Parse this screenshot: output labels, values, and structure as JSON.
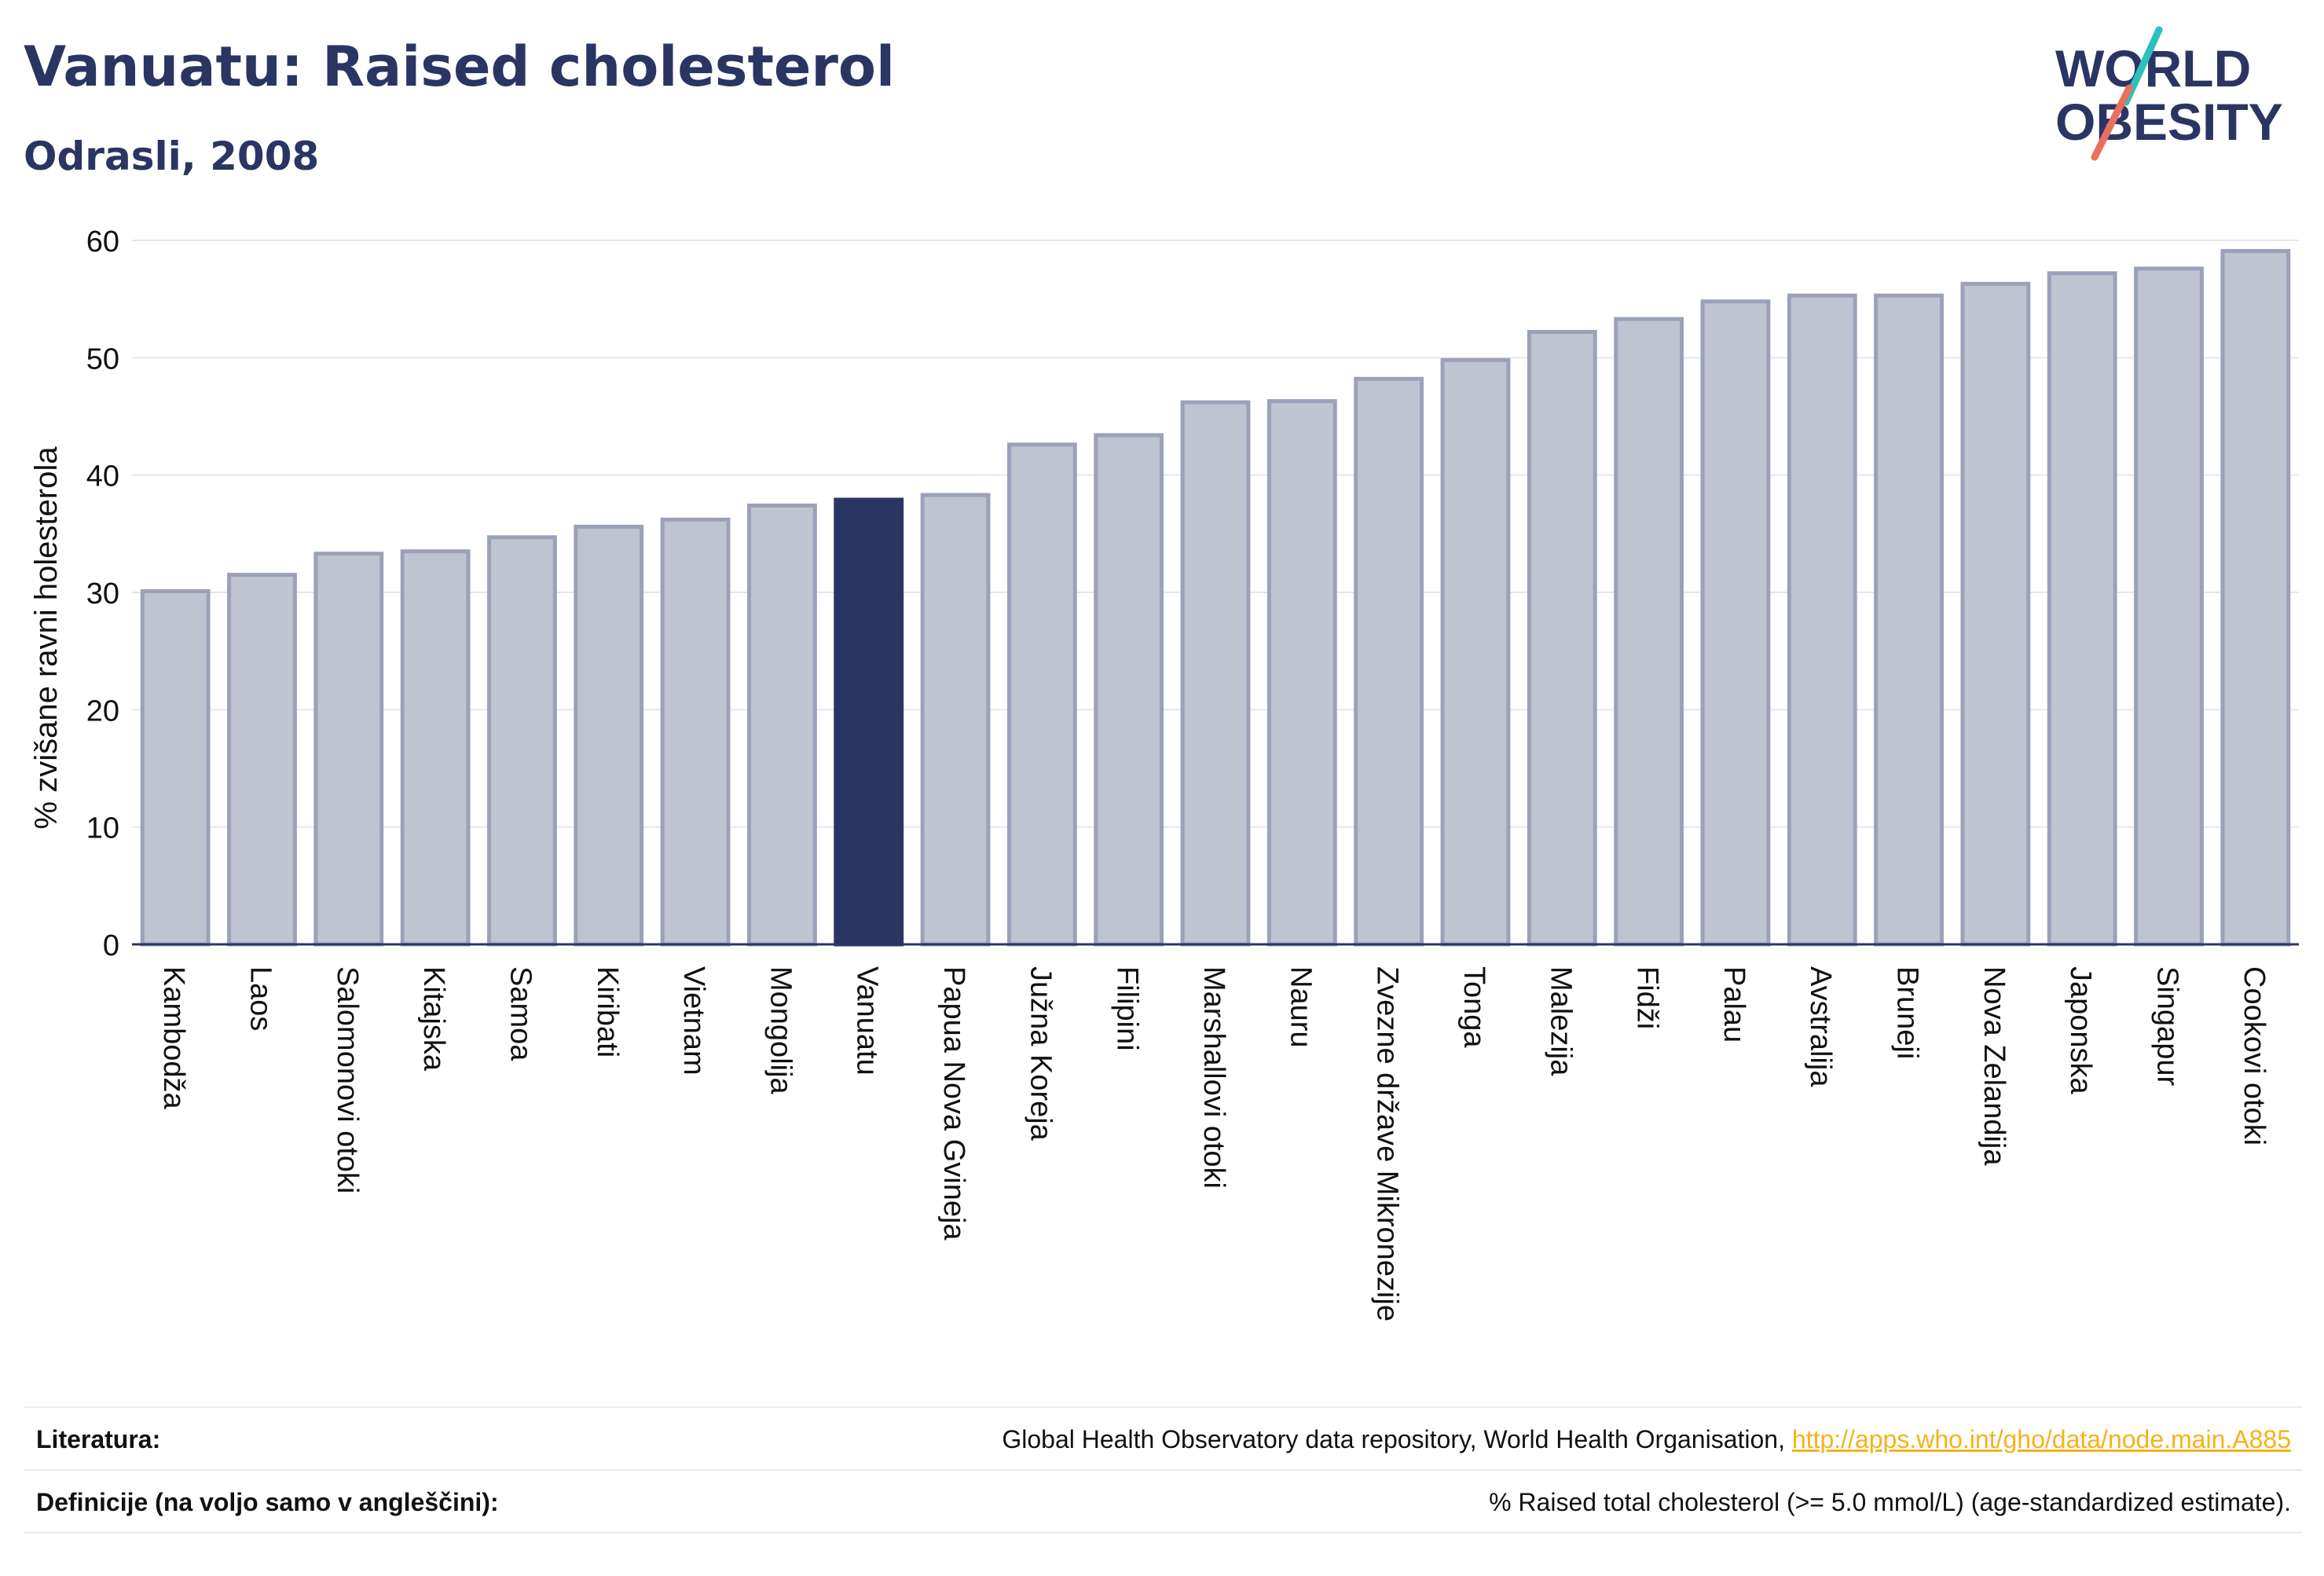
{
  "header": {
    "title": "Vanuatu: Raised cholesterol",
    "subtitle": "Odrasli, 2008"
  },
  "logo": {
    "line1": "WORLD",
    "line2": "OBESITY"
  },
  "colors": {
    "highlight": "#2b3563",
    "bar_fill": "#c0c3d0",
    "bar_stroke": "#9ba1b8",
    "axis": "#2b3563",
    "grid": "#e6e7ec",
    "logo_teal": "#2ebfbf",
    "logo_coral": "#e8705c"
  },
  "chart_data": {
    "type": "bar",
    "ylabel": "% zvišane ravni holesterola",
    "ylim": [
      0,
      60
    ],
    "yticks": [
      0,
      10,
      20,
      30,
      40,
      50,
      60
    ],
    "grid": true,
    "highlight": "Vanuatu",
    "categories": [
      "Kambodža",
      "Laos",
      "Salomonovi otoki",
      "Kitajska",
      "Samoa",
      "Kiribati",
      "Vietnam",
      "Mongolija",
      "Vanuatu",
      "Papua Nova Gvineja",
      "Južna Koreja",
      "Filipini",
      "Marshallovi otoki",
      "Nauru",
      "Zvezne države Mikronezije",
      "Tonga",
      "Malezija",
      "Fidži",
      "Palau",
      "Avstralija",
      "Bruneji",
      "Nova Zelandija",
      "Japonska",
      "Singapur",
      "Cookovi otoki"
    ],
    "values": [
      30.1,
      31.5,
      33.3,
      33.5,
      34.7,
      35.6,
      36.2,
      37.4,
      37.9,
      38.3,
      42.6,
      43.4,
      46.2,
      46.3,
      48.2,
      49.8,
      52.2,
      53.3,
      54.8,
      55.3,
      55.3,
      56.3,
      57.2,
      57.6,
      59.1
    ]
  },
  "footer": {
    "references_label": "Literatura:",
    "references_text": "Global Health Observatory data repository, World Health Organisation, ",
    "references_link": "http://apps.who.int/gho/data/node.main.A885",
    "definitions_label": "Definicije (na voljo samo v angleščini):",
    "definitions_text": "% Raised total cholesterol (>= 5.0 mmol/L) (age-standardized estimate)."
  }
}
